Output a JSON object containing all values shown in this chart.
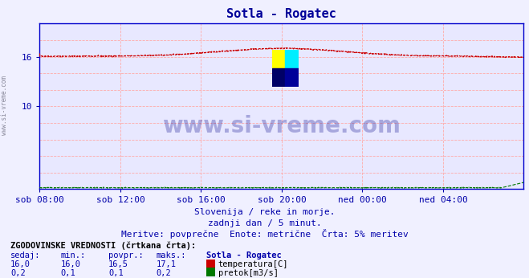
{
  "title": "Sotla - Rogatec",
  "title_color": "#000099",
  "bg_color": "#f0f0ff",
  "plot_bg_color": "#e8e8ff",
  "grid_color": "#ffaaaa",
  "xlabel_color": "#0000aa",
  "x_ticks": [
    "sob 08:00",
    "sob 12:00",
    "sob 16:00",
    "sob 20:00",
    "ned 00:00",
    "ned 04:00"
  ],
  "x_tick_positions": [
    0,
    288,
    576,
    864,
    1152,
    1440
  ],
  "ylim_temp": [
    0,
    20
  ],
  "temp_color": "#cc0000",
  "flow_color": "#007700",
  "watermark_text": "www.si-vreme.com",
  "watermark_color": "#000099",
  "subtitle1": "Slovenija / reke in morje.",
  "subtitle2": "zadnji dan / 5 minut.",
  "subtitle3": "Meritve: povprečne  Enote: metrične  Črta: 5% meritev",
  "subtitle_color": "#0000aa",
  "table_title": "ZGODOVINSKE VREDNOSTI (črtkana črta):",
  "col_headers": [
    "sedaj:",
    "min.:",
    "povpr.:",
    "maks.:",
    "Sotla - Rogatec"
  ],
  "row1_vals": [
    "16,0",
    "16,0",
    "16,5",
    "17,1"
  ],
  "row1_label": "temperatura[C]",
  "row2_vals": [
    "0,2",
    "0,1",
    "0,1",
    "0,2"
  ],
  "row2_label": "pretok[m3/s]",
  "n_points": 1729,
  "left_label": "www.si-vreme.com",
  "logo_colors": [
    "#ffff00",
    "#00ffff",
    "#000099",
    "#000055"
  ]
}
